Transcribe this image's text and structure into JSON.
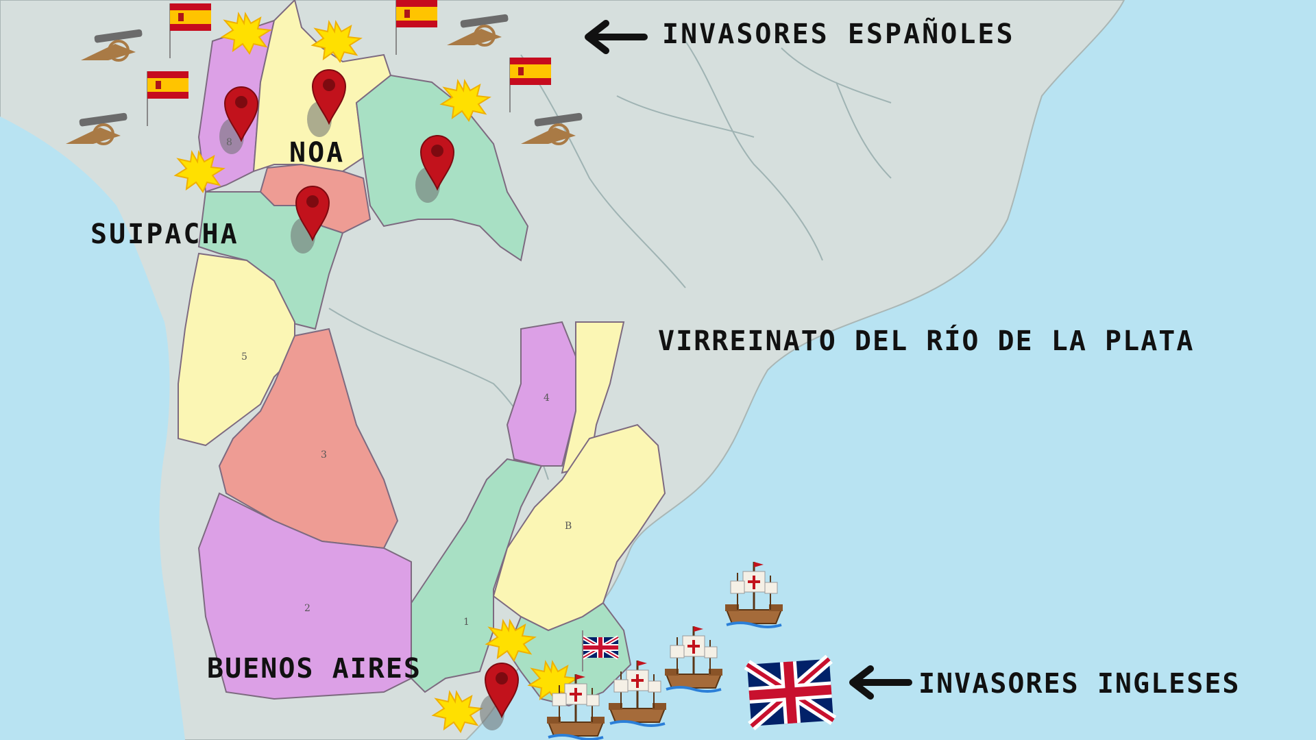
{
  "map": {
    "title": "",
    "labels": {
      "noa": "NOA",
      "suipacha": "SUIPACHA",
      "buenos_aires": "BUENOS AIRES",
      "virreinato": "VIRREINATO DEL RÍO DE LA PLATA"
    },
    "legend": {
      "spanish_invaders": "INVASORES ESPAÑOLES",
      "british_invaders": "INVASORES INGLESES"
    },
    "region_numbers": [
      "1",
      "2",
      "3",
      "4",
      "5",
      "8",
      "B"
    ],
    "colors": {
      "ocean": "#b8e3f2",
      "land": "#d6dfdd",
      "region_yellow": "#fbf6b4",
      "region_violet": "#dca0e6",
      "region_green": "#a8e0c4",
      "region_pink": "#ee9c94",
      "pin_red": "#c2121c",
      "explosion": "#ffe000"
    },
    "icons": {
      "pin": "map-pin-icon",
      "spanish_flag": "spain-flag-icon",
      "british_flag": "uk-flag-icon",
      "cannon": "cannon-icon",
      "explosion": "explosion-icon",
      "ship": "sailing-ship-icon",
      "arrow": "arrow-left-icon"
    }
  }
}
